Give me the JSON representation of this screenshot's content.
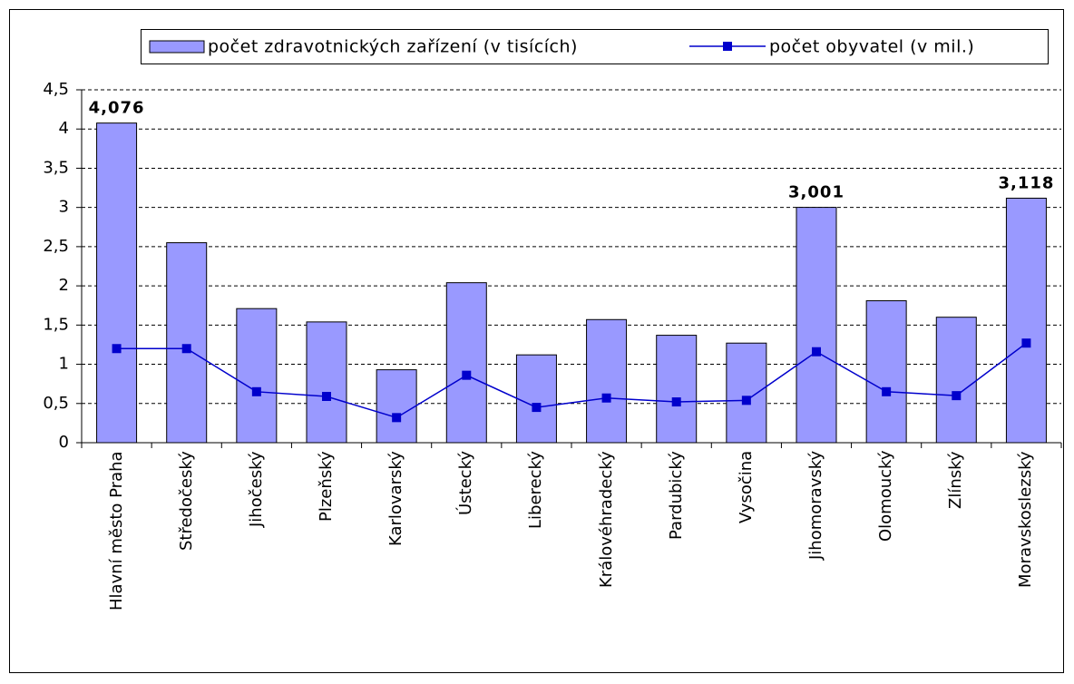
{
  "chart_data": {
    "type": "bar-line",
    "categories": [
      "Hlavní město Praha",
      "Středočeský",
      "Jihočeský",
      "Plzeňský",
      "Karlovarský",
      "Ústecký",
      "Liberecký",
      "Královéhradecký",
      "Pardubický",
      "Vysočina",
      "Jihomoravský",
      "Olomoucký",
      "Zlínský",
      "Moravskoslezský"
    ],
    "series": [
      {
        "name": "počet zdravotnických zařízení (v tisících)",
        "type": "bar",
        "color": "#9999ff",
        "values": [
          4.076,
          2.55,
          1.71,
          1.54,
          0.93,
          2.04,
          1.12,
          1.57,
          1.37,
          1.27,
          3.001,
          1.81,
          1.6,
          3.118
        ],
        "value_labels": [
          "4,076",
          null,
          null,
          null,
          null,
          null,
          null,
          null,
          null,
          null,
          "3,001",
          null,
          null,
          "3,118"
        ]
      },
      {
        "name": "počet obyvatel (v mil.)",
        "type": "line",
        "color": "#0000cc",
        "values": [
          1.2,
          1.2,
          0.65,
          0.59,
          0.32,
          0.86,
          0.45,
          0.57,
          0.52,
          0.54,
          1.16,
          0.65,
          0.6,
          1.27
        ]
      }
    ],
    "ylim": [
      0,
      4.5
    ],
    "yticks": [
      0,
      {
        "value": 0.5,
        "label": "0,5"
      },
      1,
      {
        "value": 1.5,
        "label": "1,5"
      },
      2,
      {
        "value": 2.5,
        "label": "2,5"
      },
      3,
      {
        "value": 3.5,
        "label": "3,5"
      },
      4,
      {
        "value": 4.5,
        "label": "4,5"
      }
    ],
    "grid": true,
    "legend": "top"
  }
}
